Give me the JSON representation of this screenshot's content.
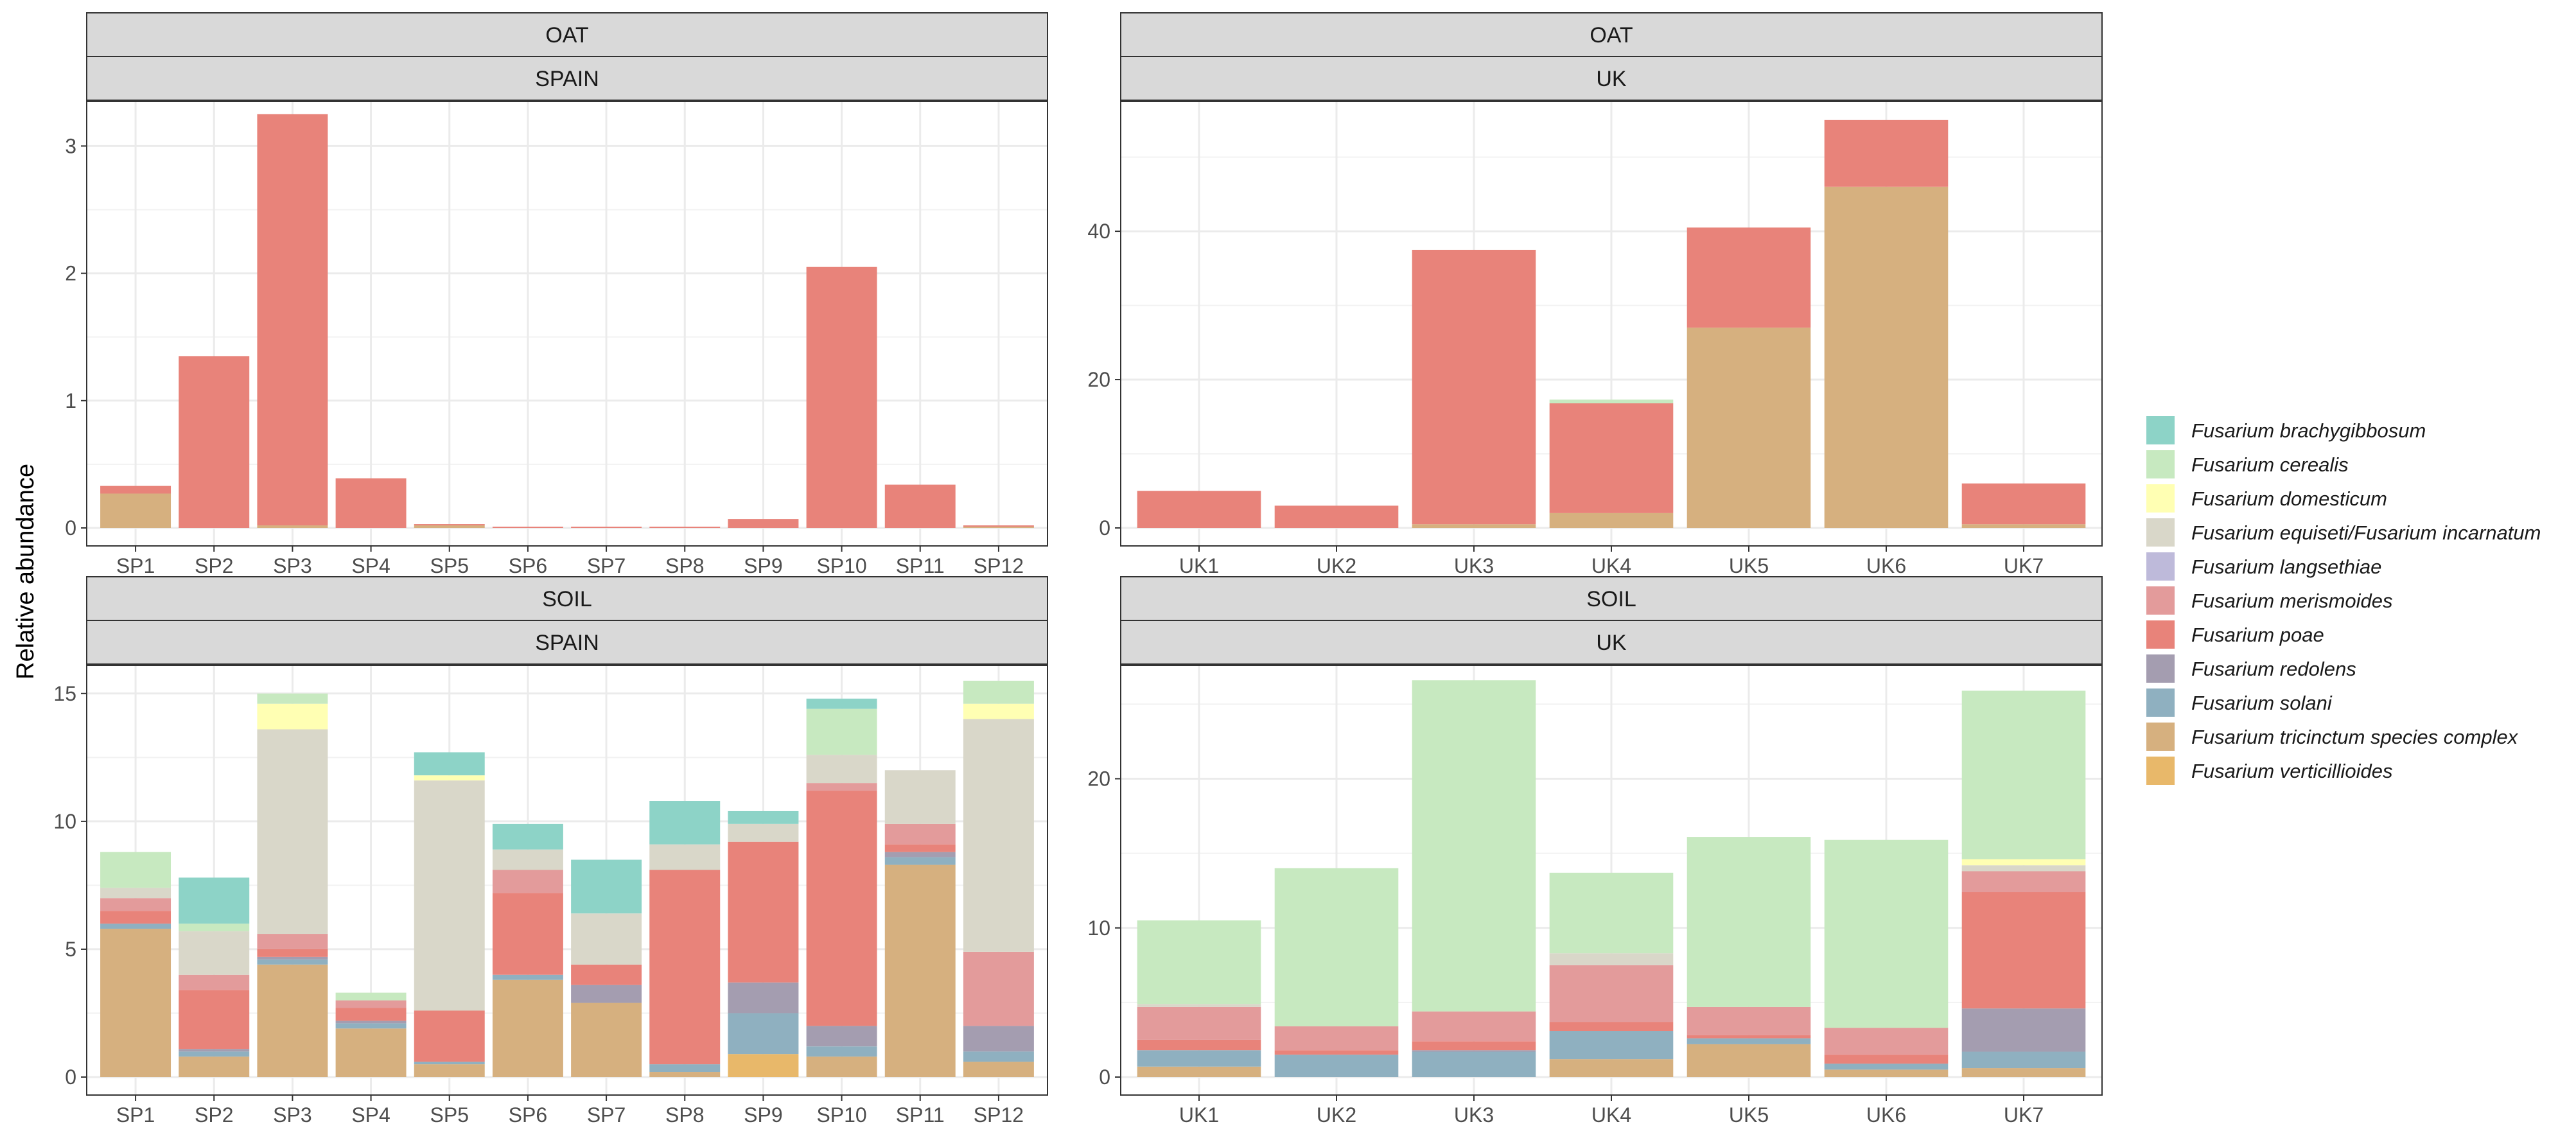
{
  "y_axis_label": "Relative abundance",
  "legend": {
    "items": [
      {
        "label": "Fusarium brachygibbosum",
        "color": "#8dd3c7"
      },
      {
        "label": "Fusarium cerealis",
        "color": "#c7e9c0"
      },
      {
        "label": "Fusarium domesticum",
        "color": "#ffffb3"
      },
      {
        "label": "Fusarium equiseti/Fusarium incarnatum",
        "color": "#d9d7c9"
      },
      {
        "label": "Fusarium langsethiae",
        "color": "#bebada"
      },
      {
        "label": "Fusarium merismoides",
        "color": "#e39b9b"
      },
      {
        "label": "Fusarium poae",
        "color": "#e8837a"
      },
      {
        "label": "Fusarium redolens",
        "color": "#a49db0"
      },
      {
        "label": "Fusarium solani",
        "color": "#8fb0c0"
      },
      {
        "label": "Fusarium tricinctum species complex",
        "color": "#d6b07f"
      },
      {
        "label": "Fusarium verticillioides",
        "color": "#e8b86a"
      }
    ]
  },
  "chart_data": [
    {
      "type": "bar",
      "stacked": true,
      "facet_top": "OAT",
      "facet_bottom": "SPAIN",
      "categories": [
        "SP1",
        "SP2",
        "SP3",
        "SP4",
        "SP5",
        "SP6",
        "SP7",
        "SP8",
        "SP9",
        "SP10",
        "SP11",
        "SP12"
      ],
      "ylim": [
        0,
        3.35
      ],
      "yticks": [
        0,
        1,
        2,
        3
      ],
      "series": [
        {
          "name": "Fusarium tricinctum species complex",
          "values": [
            0.27,
            0,
            0.02,
            0,
            0.02,
            0,
            0,
            0,
            0,
            0,
            0,
            0.01
          ]
        },
        {
          "name": "Fusarium poae",
          "values": [
            0.06,
            1.35,
            3.23,
            0.39,
            0.01,
            0.01,
            0.01,
            0.01,
            0.07,
            2.05,
            0.34,
            0.01
          ]
        }
      ]
    },
    {
      "type": "bar",
      "stacked": true,
      "facet_top": "OAT",
      "facet_bottom": "UK",
      "categories": [
        "UK1",
        "UK2",
        "UK3",
        "UK4",
        "UK5",
        "UK6",
        "UK7"
      ],
      "ylim": [
        0,
        57.5
      ],
      "yticks": [
        0,
        20,
        40
      ],
      "series": [
        {
          "name": "Fusarium tricinctum species complex",
          "values": [
            0,
            0,
            0.5,
            2,
            27,
            46,
            0.5
          ]
        },
        {
          "name": "Fusarium poae",
          "values": [
            5,
            3,
            37,
            14.8,
            13.5,
            9,
            5.5
          ]
        },
        {
          "name": "Fusarium cerealis",
          "values": [
            0,
            0,
            0,
            0.5,
            0,
            0,
            0
          ]
        }
      ]
    },
    {
      "type": "bar",
      "stacked": true,
      "facet_top": "SOIL",
      "facet_bottom": "SPAIN",
      "categories": [
        "SP1",
        "SP2",
        "SP3",
        "SP4",
        "SP5",
        "SP6",
        "SP7",
        "SP8",
        "SP9",
        "SP10",
        "SP11",
        "SP12"
      ],
      "ylim": [
        0,
        16.1
      ],
      "yticks": [
        0,
        5,
        10,
        15
      ],
      "series": [
        {
          "name": "Fusarium verticillioides",
          "values": [
            0,
            0,
            0,
            0,
            0,
            0,
            0,
            0,
            0.9,
            0,
            0,
            0
          ]
        },
        {
          "name": "Fusarium tricinctum species complex",
          "values": [
            5.8,
            0.8,
            4.4,
            1.9,
            0.5,
            3.8,
            2.9,
            0.2,
            0,
            0.8,
            8.3,
            0.6
          ]
        },
        {
          "name": "Fusarium solani",
          "values": [
            0.2,
            0.2,
            0.2,
            0.2,
            0.1,
            0.2,
            0,
            0.3,
            1.6,
            0.4,
            0.3,
            0.4
          ]
        },
        {
          "name": "Fusarium redolens",
          "values": [
            0,
            0.1,
            0.1,
            0.1,
            0,
            0,
            0.7,
            0,
            1.2,
            0.8,
            0.2,
            1
          ]
        },
        {
          "name": "Fusarium poae",
          "values": [
            0.5,
            2.3,
            0.3,
            0.5,
            2,
            3.2,
            0.8,
            7.6,
            5.5,
            9.2,
            0.3,
            0
          ]
        },
        {
          "name": "Fusarium merismoides",
          "values": [
            0.5,
            0.6,
            0.6,
            0.3,
            0,
            0.9,
            0,
            0,
            0,
            0.3,
            0.8,
            2.9
          ]
        },
        {
          "name": "Fusarium equiseti/Fusarium incarnatum",
          "values": [
            0.4,
            1.7,
            8,
            0,
            9,
            0.8,
            2,
            1,
            0.7,
            1.1,
            2.1,
            9.1
          ]
        },
        {
          "name": "Fusarium domesticum",
          "values": [
            0,
            0,
            1,
            0,
            0.2,
            0,
            0,
            0,
            0,
            0,
            0,
            0.6
          ]
        },
        {
          "name": "Fusarium cerealis",
          "values": [
            1.4,
            0.3,
            0.4,
            0.3,
            0,
            0,
            0,
            0,
            0,
            1.8,
            0,
            0.9
          ]
        },
        {
          "name": "Fusarium brachygibbosum",
          "values": [
            0,
            1.8,
            0,
            0,
            0.9,
            1,
            2.1,
            1.7,
            0.5,
            0.4,
            0,
            0
          ]
        }
      ]
    },
    {
      "type": "bar",
      "stacked": true,
      "facet_top": "SOIL",
      "facet_bottom": "UK",
      "categories": [
        "UK1",
        "UK2",
        "UK3",
        "UK4",
        "UK5",
        "UK6",
        "UK7"
      ],
      "ylim": [
        0,
        27.6
      ],
      "yticks": [
        0,
        10,
        20
      ],
      "series": [
        {
          "name": "Fusarium tricinctum species complex",
          "values": [
            0.7,
            0,
            0,
            1.2,
            2.2,
            0.5,
            0.6
          ]
        },
        {
          "name": "Fusarium solani",
          "values": [
            1.1,
            1.5,
            1.7,
            1.9,
            0.4,
            0.4,
            1.1
          ]
        },
        {
          "name": "Fusarium redolens",
          "values": [
            0,
            0,
            0.1,
            0,
            0,
            0,
            2.9
          ]
        },
        {
          "name": "Fusarium poae",
          "values": [
            0.7,
            0.3,
            0.6,
            0.6,
            0.2,
            0.6,
            7.8
          ]
        },
        {
          "name": "Fusarium merismoides",
          "values": [
            2.2,
            1.6,
            2,
            3.8,
            1.9,
            1.8,
            1.4
          ]
        },
        {
          "name": "Fusarium equiseti/Fusarium incarnatum",
          "values": [
            0.2,
            0,
            0,
            0.8,
            0,
            0,
            0.4
          ]
        },
        {
          "name": "Fusarium domesticum",
          "values": [
            0,
            0,
            0,
            0,
            0,
            0,
            0.4
          ]
        },
        {
          "name": "Fusarium cerealis",
          "values": [
            5.6,
            10.6,
            22.2,
            5.4,
            11.4,
            12.6,
            11.3
          ]
        }
      ]
    }
  ]
}
